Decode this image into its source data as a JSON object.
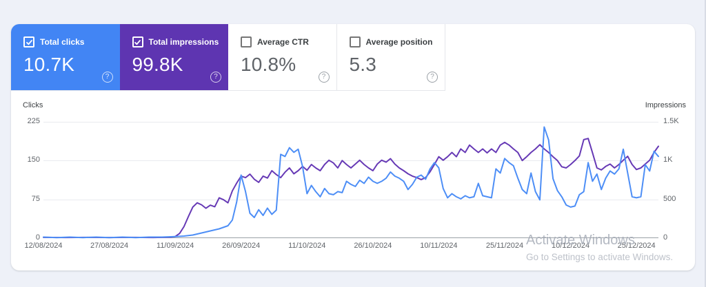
{
  "window": {
    "watermark_line1": "Activate Windows",
    "watermark_line2": "Go to Settings to activate Windows."
  },
  "metric_cards": [
    {
      "label": "Total clicks",
      "value": "10.7K",
      "checked": true,
      "selected": true,
      "bg_color": "#4285f4",
      "help_icon": "question-mark-circle"
    },
    {
      "label": "Total impressions",
      "value": "99.8K",
      "checked": true,
      "selected": true,
      "bg_color": "#5e35b1",
      "help_icon": "question-mark-circle"
    },
    {
      "label": "Average CTR",
      "value": "10.8%",
      "checked": false,
      "selected": false,
      "bg_color": "#ffffff",
      "help_icon": "question-mark-circle"
    },
    {
      "label": "Average position",
      "value": "5.3",
      "checked": false,
      "selected": false,
      "bg_color": "#ffffff",
      "help_icon": "question-mark-circle"
    }
  ],
  "chart_data": {
    "type": "line",
    "title": "",
    "grid": "horizontal",
    "legend_position": "none",
    "x_tick_labels": [
      "12/08/2024",
      "27/08/2024",
      "11/09/2024",
      "26/09/2024",
      "11/10/2024",
      "26/10/2024",
      "10/11/2024",
      "25/11/2024",
      "10/12/2024",
      "25/12/2024"
    ],
    "x_tick_days": [
      0,
      15,
      30,
      45,
      60,
      75,
      90,
      105,
      120,
      135
    ],
    "x_domain_days": [
      0,
      140
    ],
    "left_axis": {
      "title": "Clicks",
      "tick_labels": [
        "225",
        "150",
        "75",
        "0"
      ],
      "ticks": [
        225,
        150,
        75,
        0
      ],
      "range": [
        0,
        225
      ]
    },
    "right_axis": {
      "title": "Impressions",
      "tick_labels": [
        "1.5K",
        "1K",
        "500",
        "0"
      ],
      "ticks": [
        1500,
        1000,
        500,
        0
      ],
      "range": [
        0,
        1500
      ]
    },
    "series": [
      {
        "name": "Total clicks",
        "axis": "left",
        "color": "#4d8ef6",
        "points": [
          [
            0,
            2
          ],
          [
            3,
            1
          ],
          [
            6,
            2
          ],
          [
            9,
            1
          ],
          [
            12,
            2
          ],
          [
            15,
            1
          ],
          [
            18,
            2
          ],
          [
            21,
            1
          ],
          [
            24,
            2
          ],
          [
            27,
            2
          ],
          [
            30,
            3
          ],
          [
            32,
            4
          ],
          [
            34,
            6
          ],
          [
            36,
            10
          ],
          [
            38,
            14
          ],
          [
            40,
            18
          ],
          [
            42,
            24
          ],
          [
            43,
            35
          ],
          [
            44,
            70
          ],
          [
            45,
            122
          ],
          [
            46,
            90
          ],
          [
            47,
            48
          ],
          [
            48,
            40
          ],
          [
            49,
            55
          ],
          [
            50,
            44
          ],
          [
            51,
            58
          ],
          [
            52,
            46
          ],
          [
            53,
            54
          ],
          [
            54,
            162
          ],
          [
            55,
            158
          ],
          [
            56,
            175
          ],
          [
            57,
            166
          ],
          [
            58,
            172
          ],
          [
            59,
            138
          ],
          [
            60,
            86
          ],
          [
            61,
            102
          ],
          [
            62,
            90
          ],
          [
            63,
            80
          ],
          [
            64,
            96
          ],
          [
            65,
            86
          ],
          [
            66,
            84
          ],
          [
            67,
            90
          ],
          [
            68,
            88
          ],
          [
            69,
            110
          ],
          [
            70,
            104
          ],
          [
            71,
            100
          ],
          [
            72,
            112
          ],
          [
            73,
            106
          ],
          [
            74,
            118
          ],
          [
            75,
            110
          ],
          [
            76,
            106
          ],
          [
            77,
            110
          ],
          [
            78,
            116
          ],
          [
            79,
            128
          ],
          [
            80,
            120
          ],
          [
            81,
            116
          ],
          [
            82,
            110
          ],
          [
            83,
            94
          ],
          [
            84,
            104
          ],
          [
            85,
            118
          ],
          [
            86,
            122
          ],
          [
            87,
            114
          ],
          [
            88,
            134
          ],
          [
            89,
            146
          ],
          [
            90,
            136
          ],
          [
            91,
            96
          ],
          [
            92,
            78
          ],
          [
            93,
            86
          ],
          [
            94,
            80
          ],
          [
            95,
            76
          ],
          [
            96,
            82
          ],
          [
            97,
            78
          ],
          [
            98,
            80
          ],
          [
            99,
            106
          ],
          [
            100,
            82
          ],
          [
            101,
            80
          ],
          [
            102,
            78
          ],
          [
            103,
            134
          ],
          [
            104,
            126
          ],
          [
            105,
            154
          ],
          [
            106,
            146
          ],
          [
            107,
            140
          ],
          [
            108,
            116
          ],
          [
            109,
            94
          ],
          [
            110,
            86
          ],
          [
            111,
            126
          ],
          [
            112,
            90
          ],
          [
            113,
            74
          ],
          [
            114,
            215
          ],
          [
            115,
            190
          ],
          [
            116,
            115
          ],
          [
            117,
            92
          ],
          [
            118,
            80
          ],
          [
            119,
            64
          ],
          [
            120,
            60
          ],
          [
            121,
            62
          ],
          [
            122,
            84
          ],
          [
            123,
            90
          ],
          [
            124,
            146
          ],
          [
            125,
            110
          ],
          [
            126,
            124
          ],
          [
            127,
            94
          ],
          [
            128,
            116
          ],
          [
            129,
            130
          ],
          [
            130,
            124
          ],
          [
            131,
            134
          ],
          [
            132,
            172
          ],
          [
            133,
            126
          ],
          [
            134,
            80
          ],
          [
            135,
            78
          ],
          [
            136,
            80
          ],
          [
            137,
            142
          ],
          [
            138,
            130
          ],
          [
            139,
            168
          ],
          [
            140,
            158
          ]
        ]
      },
      {
        "name": "Total impressions",
        "axis": "right",
        "color": "#6639b5",
        "points": [
          [
            0,
            10
          ],
          [
            5,
            8
          ],
          [
            10,
            10
          ],
          [
            15,
            8
          ],
          [
            20,
            10
          ],
          [
            25,
            8
          ],
          [
            29,
            12
          ],
          [
            30,
            20
          ],
          [
            31,
            60
          ],
          [
            32,
            150
          ],
          [
            33,
            280
          ],
          [
            34,
            400
          ],
          [
            35,
            455
          ],
          [
            36,
            430
          ],
          [
            37,
            385
          ],
          [
            38,
            425
          ],
          [
            39,
            405
          ],
          [
            40,
            520
          ],
          [
            41,
            495
          ],
          [
            42,
            455
          ],
          [
            43,
            610
          ],
          [
            44,
            710
          ],
          [
            45,
            800
          ],
          [
            46,
            780
          ],
          [
            47,
            825
          ],
          [
            48,
            760
          ],
          [
            49,
            720
          ],
          [
            50,
            800
          ],
          [
            51,
            775
          ],
          [
            52,
            870
          ],
          [
            53,
            820
          ],
          [
            54,
            780
          ],
          [
            55,
            850
          ],
          [
            56,
            905
          ],
          [
            57,
            830
          ],
          [
            58,
            870
          ],
          [
            59,
            925
          ],
          [
            60,
            875
          ],
          [
            61,
            950
          ],
          [
            62,
            905
          ],
          [
            63,
            870
          ],
          [
            64,
            950
          ],
          [
            65,
            1005
          ],
          [
            66,
            970
          ],
          [
            67,
            905
          ],
          [
            68,
            1000
          ],
          [
            69,
            950
          ],
          [
            70,
            905
          ],
          [
            71,
            955
          ],
          [
            72,
            1005
          ],
          [
            73,
            950
          ],
          [
            74,
            905
          ],
          [
            75,
            870
          ],
          [
            76,
            955
          ],
          [
            77,
            1005
          ],
          [
            78,
            980
          ],
          [
            79,
            1025
          ],
          [
            80,
            955
          ],
          [
            81,
            905
          ],
          [
            82,
            870
          ],
          [
            83,
            830
          ],
          [
            84,
            800
          ],
          [
            85,
            780
          ],
          [
            86,
            755
          ],
          [
            87,
            780
          ],
          [
            88,
            855
          ],
          [
            89,
            950
          ],
          [
            90,
            1050
          ],
          [
            91,
            1005
          ],
          [
            92,
            1050
          ],
          [
            93,
            1105
          ],
          [
            94,
            1050
          ],
          [
            95,
            1150
          ],
          [
            96,
            1105
          ],
          [
            97,
            1200
          ],
          [
            98,
            1150
          ],
          [
            99,
            1105
          ],
          [
            100,
            1150
          ],
          [
            101,
            1100
          ],
          [
            102,
            1150
          ],
          [
            103,
            1105
          ],
          [
            104,
            1200
          ],
          [
            105,
            1235
          ],
          [
            106,
            1200
          ],
          [
            107,
            1150
          ],
          [
            108,
            1105
          ],
          [
            109,
            1000
          ],
          [
            110,
            1050
          ],
          [
            111,
            1105
          ],
          [
            112,
            1150
          ],
          [
            113,
            1205
          ],
          [
            114,
            1150
          ],
          [
            115,
            1105
          ],
          [
            116,
            1050
          ],
          [
            117,
            1000
          ],
          [
            118,
            920
          ],
          [
            119,
            905
          ],
          [
            120,
            950
          ],
          [
            121,
            1000
          ],
          [
            122,
            1060
          ],
          [
            123,
            1270
          ],
          [
            124,
            1285
          ],
          [
            125,
            1100
          ],
          [
            126,
            905
          ],
          [
            127,
            880
          ],
          [
            128,
            925
          ],
          [
            129,
            955
          ],
          [
            130,
            905
          ],
          [
            131,
            950
          ],
          [
            132,
            1005
          ],
          [
            133,
            1055
          ],
          [
            134,
            950
          ],
          [
            135,
            885
          ],
          [
            136,
            905
          ],
          [
            137,
            955
          ],
          [
            138,
            1005
          ],
          [
            139,
            1105
          ],
          [
            140,
            1185
          ]
        ]
      }
    ]
  }
}
